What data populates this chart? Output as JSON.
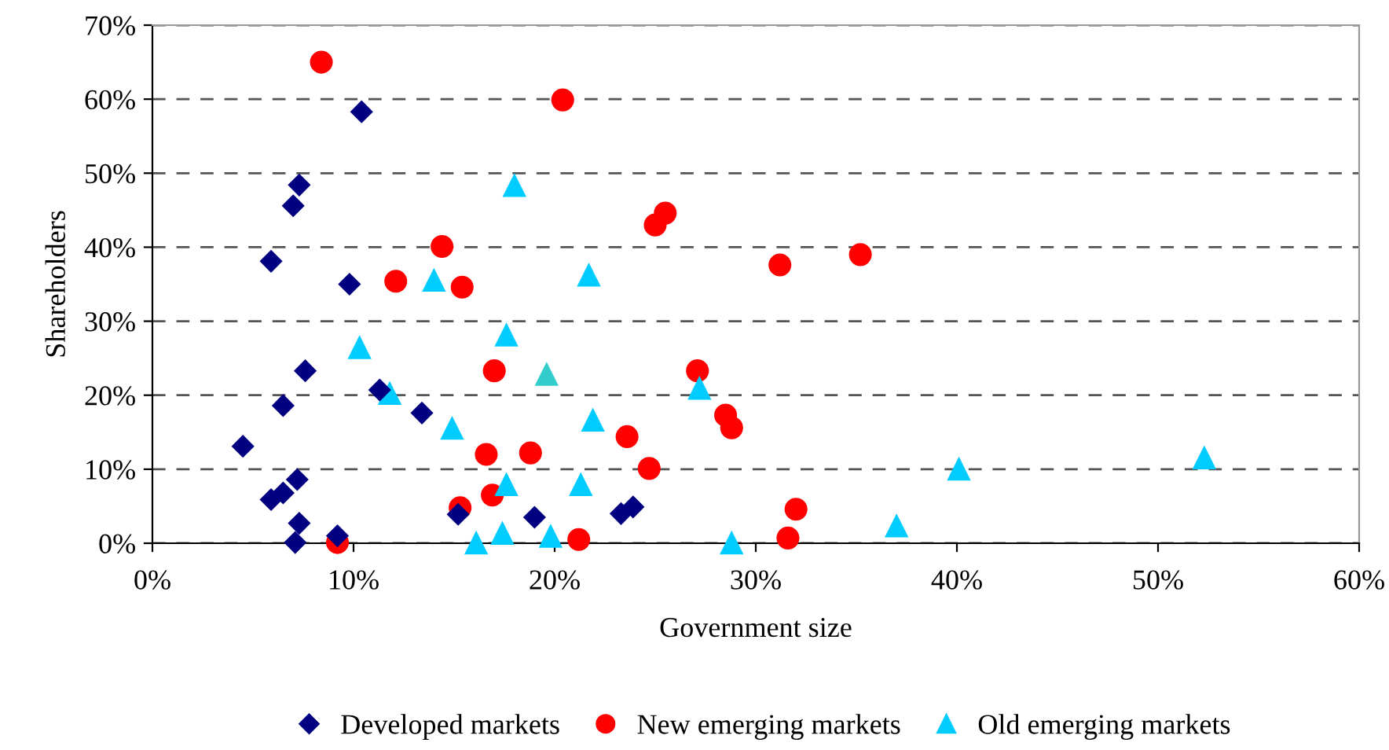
{
  "chart_data": {
    "type": "scatter",
    "xlabel": "Government size",
    "ylabel": "Shareholders",
    "xlim": [
      0,
      60
    ],
    "ylim": [
      0,
      70
    ],
    "xticks": [
      {
        "value": 0,
        "label": "0%"
      },
      {
        "value": 10,
        "label": "10%"
      },
      {
        "value": 20,
        "label": "20%"
      },
      {
        "value": 30,
        "label": "30%"
      },
      {
        "value": 40,
        "label": "40%"
      },
      {
        "value": 50,
        "label": "50%"
      },
      {
        "value": 60,
        "label": "60%"
      }
    ],
    "yticks": [
      {
        "value": 0,
        "label": "0%"
      },
      {
        "value": 10,
        "label": "10%"
      },
      {
        "value": 20,
        "label": "20%"
      },
      {
        "value": 30,
        "label": "30%"
      },
      {
        "value": 40,
        "label": "40%"
      },
      {
        "value": 50,
        "label": "50%"
      },
      {
        "value": 60,
        "label": "60%"
      },
      {
        "value": 70,
        "label": "70%"
      }
    ],
    "grid": "y",
    "legend": "bottom",
    "series": [
      {
        "name": "Developed markets",
        "color": "#000080",
        "marker": "diamond",
        "x": [
          10.4,
          7.3,
          7.0,
          5.9,
          9.8,
          7.6,
          6.5,
          11.3,
          13.4,
          4.5,
          7.2,
          6.5,
          5.9,
          7.3,
          7.1,
          9.2,
          15.2,
          19.0,
          23.3,
          23.9
        ],
        "values": [
          58.3,
          48.4,
          45.6,
          38.1,
          35.0,
          23.3,
          18.6,
          20.7,
          17.6,
          13.1,
          8.6,
          6.8,
          5.9,
          2.7,
          0.1,
          1.0,
          3.9,
          3.5,
          4.0,
          4.9
        ]
      },
      {
        "name": "New emerging markets",
        "color": "#ff0000",
        "marker": "circle",
        "x": [
          8.4,
          20.4,
          14.4,
          12.1,
          15.4,
          17.0,
          16.6,
          18.8,
          15.3,
          16.9,
          9.2,
          21.2,
          25.0,
          25.5,
          31.2,
          35.2,
          27.1,
          28.5,
          28.8,
          23.6,
          24.7,
          32.0,
          31.6
        ],
        "values": [
          65.0,
          59.9,
          40.1,
          35.4,
          34.6,
          23.3,
          12.0,
          12.2,
          4.8,
          6.5,
          0.1,
          0.5,
          43.0,
          44.6,
          37.6,
          39.0,
          23.3,
          17.3,
          15.6,
          14.4,
          10.1,
          4.6,
          0.7
        ]
      },
      {
        "name": "Old emerging markets",
        "color": "#00ccff",
        "marker": "triangle",
        "colors": [
          "#00ccff",
          "#00ccff",
          "#00ccff",
          "#00ccff",
          "#00ccff",
          "#33cccc",
          "#00ccff",
          "#00ccff",
          "#00ccff",
          "#00ccff",
          "#00ccff",
          "#00ccff",
          "#00ccff",
          "#00ccff",
          "#00ccff",
          "#00ccff",
          "#00ccff",
          "#00ccff",
          "#00ccff"
        ],
        "x": [
          18.0,
          14.0,
          21.7,
          10.3,
          17.6,
          19.6,
          11.8,
          14.9,
          21.9,
          27.2,
          17.6,
          21.3,
          16.1,
          17.4,
          19.8,
          28.8,
          37.0,
          40.1,
          52.3
        ],
        "values": [
          48.4,
          35.6,
          36.3,
          26.5,
          28.2,
          22.9,
          20.3,
          15.6,
          16.7,
          21.0,
          8.0,
          8.0,
          0.1,
          1.4,
          1.0,
          0.1,
          2.4,
          10.1,
          11.6
        ]
      }
    ]
  }
}
